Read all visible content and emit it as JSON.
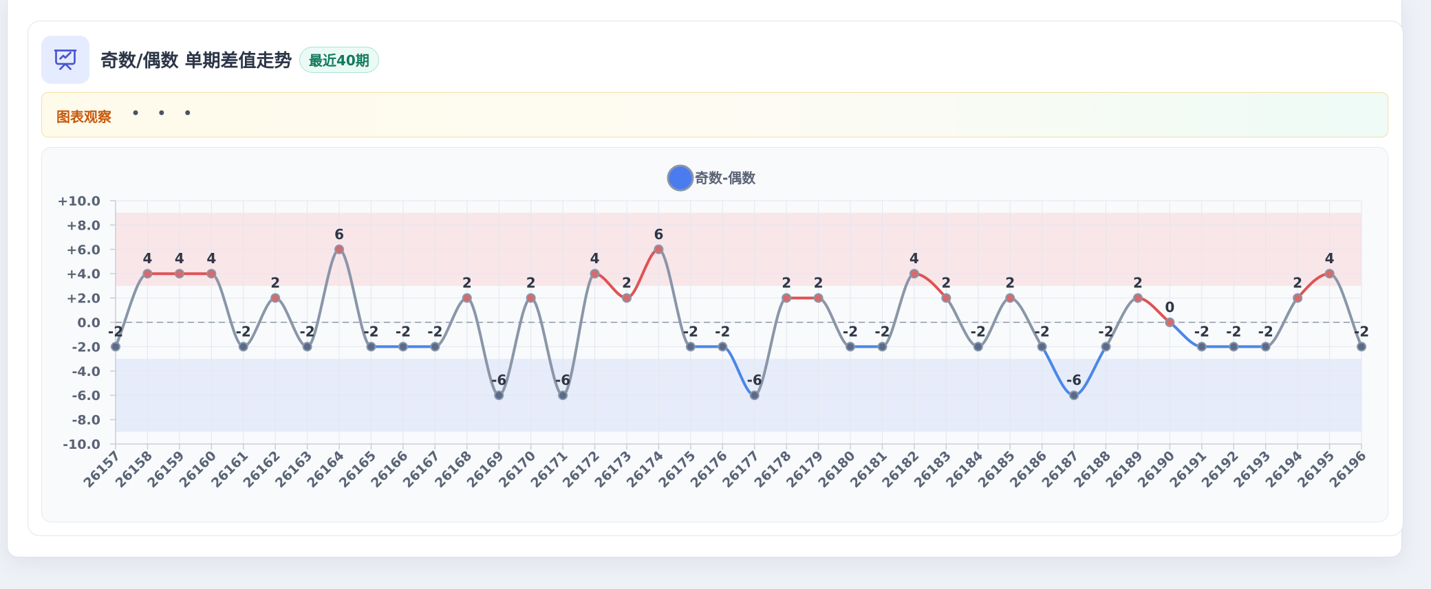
{
  "header": {
    "title": "奇数/偶数 单期差值走势",
    "badge": "最近40期",
    "icon": "presentation-chart-icon"
  },
  "observation": {
    "label": "图表观察",
    "dots": "• • •"
  },
  "colors": {
    "positive": "#e05252",
    "negative": "#4a86e8",
    "neutral": "#8a96a8",
    "legend": "#4a7cf0",
    "positive_band": "#f8e6e9",
    "negative_band": "#e6ecf9"
  },
  "chart_data": {
    "type": "line",
    "legend": [
      {
        "name": "奇数-偶数",
        "color": "#4a7cf0"
      }
    ],
    "legend_position": "top-center",
    "grid": true,
    "ylim": [
      -10,
      10
    ],
    "y_ticks": [
      "+10.0",
      "+8.0",
      "+6.0",
      "+4.0",
      "+2.0",
      "0.0",
      "-2.0",
      "-4.0",
      "-6.0",
      "-8.0",
      "-10.0"
    ],
    "bands": [
      {
        "from": 3,
        "to": 9,
        "kind": "positive"
      },
      {
        "from": -9,
        "to": -3,
        "kind": "negative"
      }
    ],
    "zero_line": true,
    "categories": [
      "26157",
      "26158",
      "26159",
      "26160",
      "26161",
      "26162",
      "26163",
      "26164",
      "26165",
      "26166",
      "26167",
      "26168",
      "26169",
      "26170",
      "26171",
      "26172",
      "26173",
      "26174",
      "26175",
      "26176",
      "26177",
      "26178",
      "26179",
      "26180",
      "26181",
      "26182",
      "26183",
      "26184",
      "26185",
      "26186",
      "26187",
      "26188",
      "26189",
      "26190",
      "26191",
      "26192",
      "26193",
      "26194",
      "26195",
      "26196"
    ],
    "series": [
      {
        "name": "奇数-偶数",
        "values": [
          -2,
          4,
          4,
          4,
          -2,
          2,
          -2,
          6,
          -2,
          -2,
          -2,
          2,
          -6,
          2,
          -6,
          4,
          2,
          6,
          -2,
          -2,
          -6,
          2,
          2,
          -2,
          -2,
          4,
          2,
          -2,
          2,
          -2,
          -6,
          -2,
          2,
          0,
          -2,
          -2,
          -2,
          2,
          4,
          -2
        ]
      }
    ]
  }
}
